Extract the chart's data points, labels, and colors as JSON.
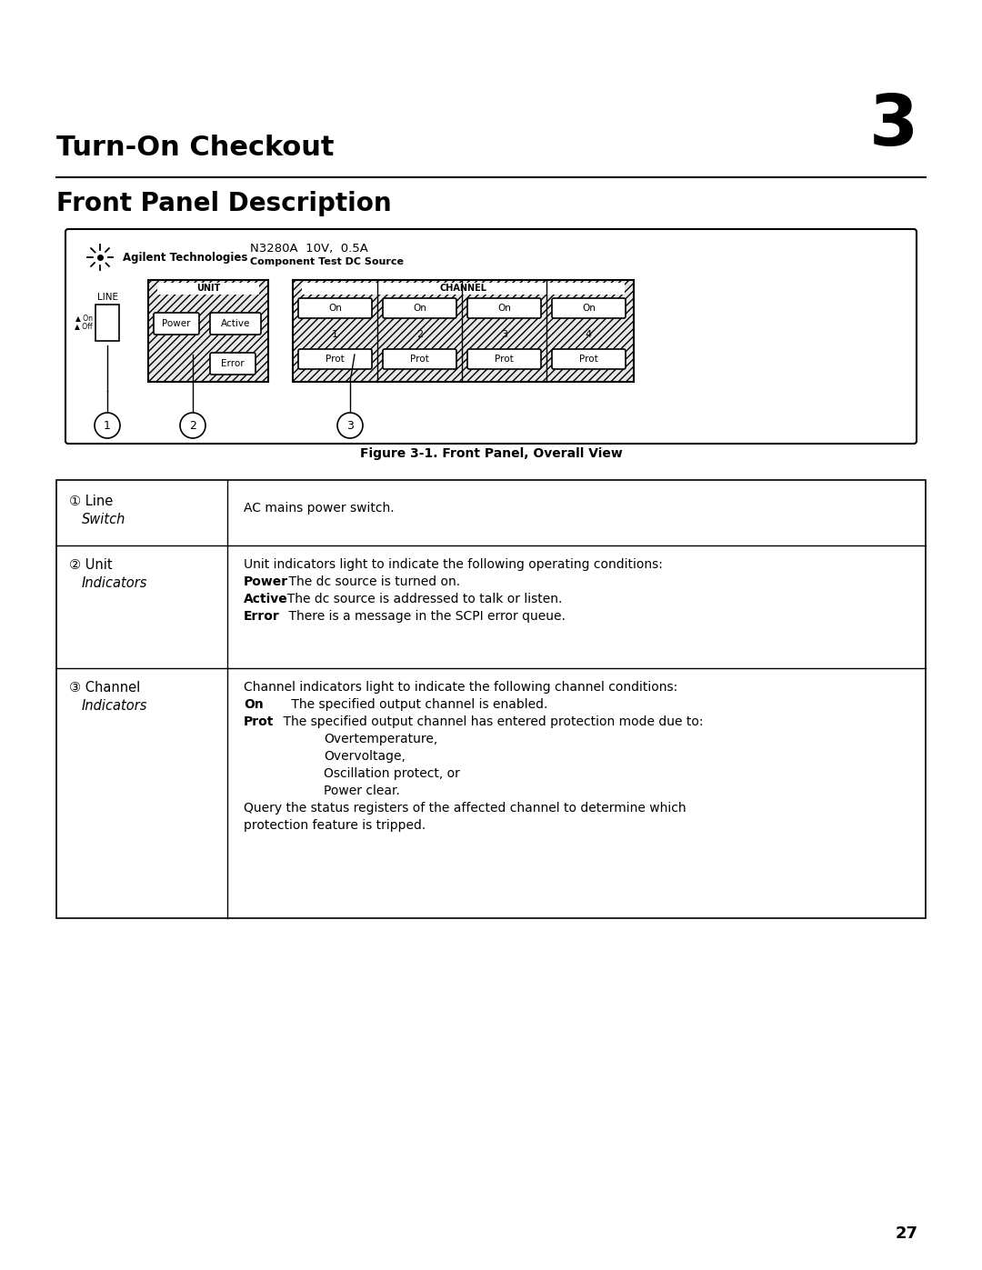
{
  "bg_color": "#ffffff",
  "page_number": "27",
  "chapter_number": "3",
  "chapter_title": "Turn-On Checkout",
  "section_title": "Front Panel Description",
  "figure_caption": "Figure 3-1. Front Panel, Overall View",
  "table": {
    "row1_label1": "① Line",
    "row1_label2": "Switch",
    "row1_content": "AC mains power switch.",
    "row2_label1": "② Unit",
    "row2_label2": "Indicators",
    "row2_content_line1": "Unit indicators light to indicate the following operating conditions:",
    "row3_label1": "③ Channel",
    "row3_label2": "Indicators",
    "row3_content_line1": "Channel indicators light to indicate the following channel conditions:"
  },
  "panel_model": "N3280A  10V,  0.5A",
  "panel_subtitle": "Component Test DC Source",
  "unit_label": "UNIT",
  "channel_label": "CHANNEL",
  "line_label": "LINE",
  "power_btn": "Power",
  "active_btn": "Active",
  "error_btn": "Error",
  "on_labels": [
    "On",
    "On",
    "On",
    "On"
  ],
  "ch_numbers": [
    "1",
    "2",
    "3",
    "4"
  ],
  "prot_labels": [
    "Prot",
    "Prot",
    "Prot",
    "Prot"
  ],
  "callout_labels": [
    "1",
    "2",
    "3"
  ]
}
